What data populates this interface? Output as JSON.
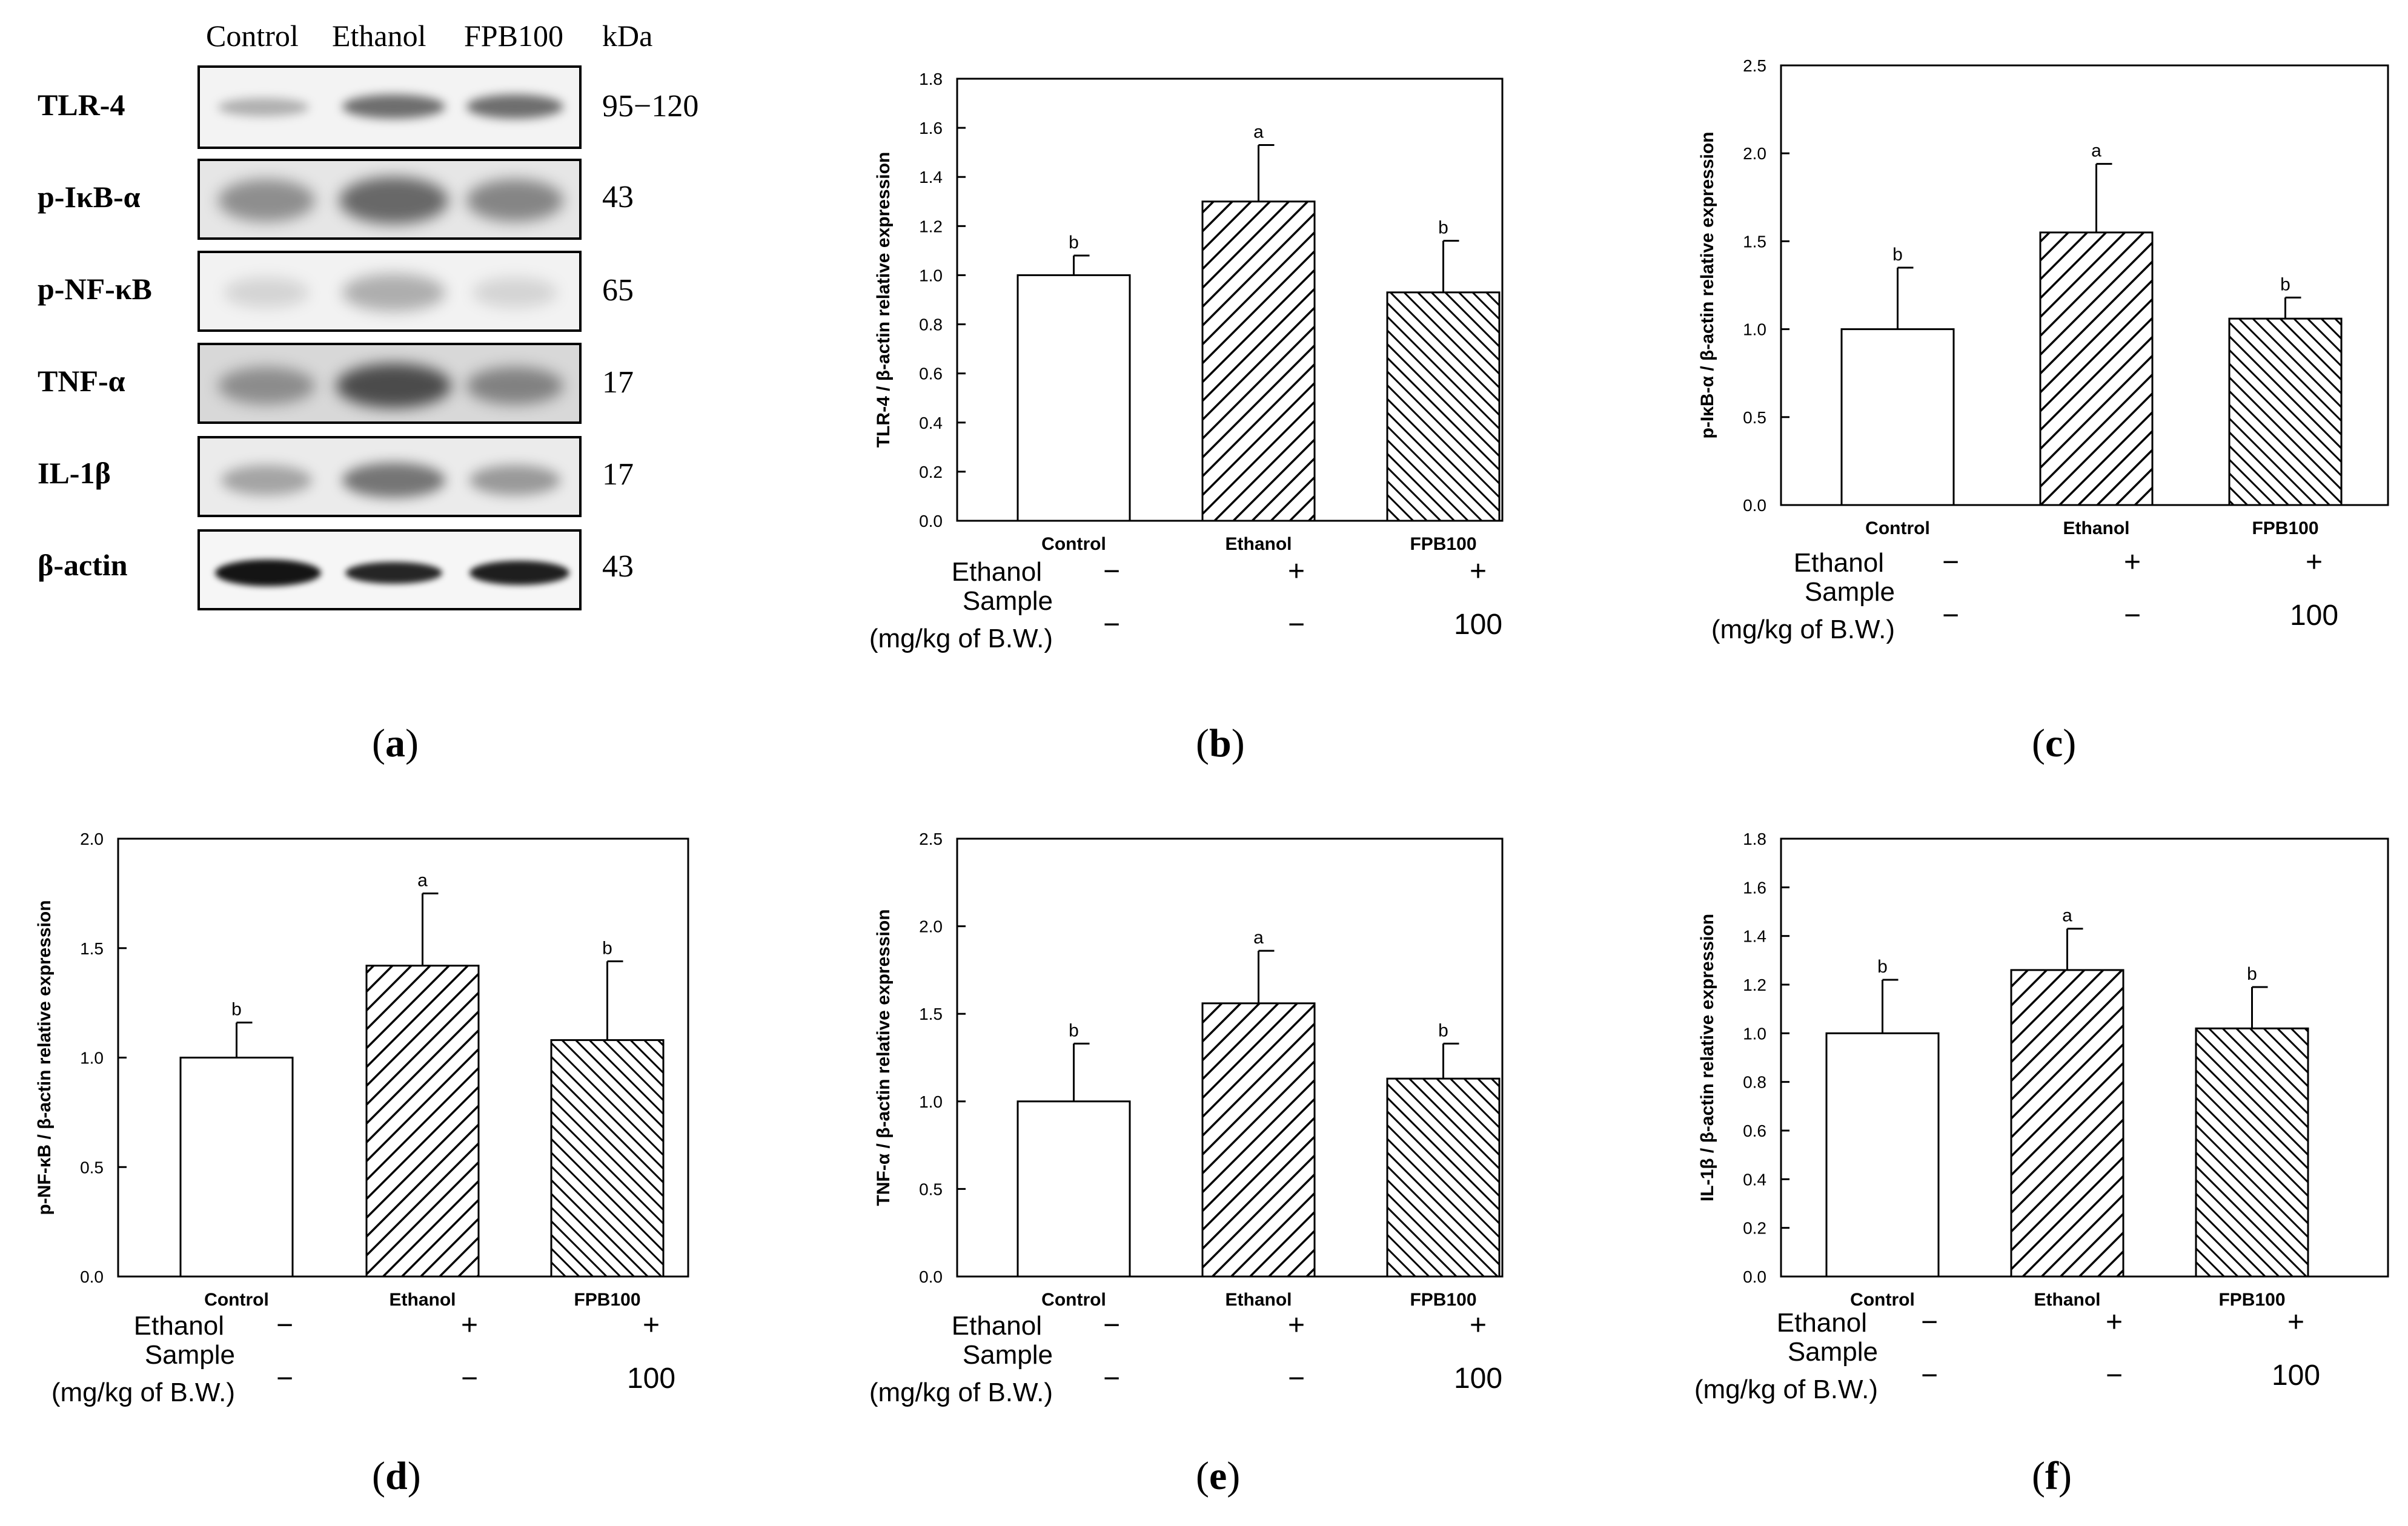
{
  "western_blot": {
    "lane_labels": [
      "Control",
      "Ethanol",
      "FPB100"
    ],
    "kda_header": "kDa",
    "proteins": [
      {
        "name": "TLR-4",
        "kda": "95−120"
      },
      {
        "name": "p-IκB-α",
        "kda": "43"
      },
      {
        "name": "p-NF-κB",
        "kda": "65"
      },
      {
        "name": "TNF-α",
        "kda": "17"
      },
      {
        "name": "IL-1β",
        "kda": "17"
      },
      {
        "name": "β-actin",
        "kda": "43"
      }
    ]
  },
  "condition_table": {
    "ethanol_label": "Ethanol",
    "sample_label": "Sample",
    "dose_label": "(mg/kg  of B.W.)",
    "ethanol_marks": [
      "−",
      "+",
      "+"
    ],
    "sample_marks": [
      "−",
      "−",
      "100"
    ]
  },
  "panels": {
    "a": "a",
    "b": "b",
    "c": "c",
    "d": "d",
    "e": "e",
    "f": "f"
  },
  "chart_data": [
    {
      "id": "b",
      "type": "bar",
      "ylabel": "TLR-4 / β-actin relative expression",
      "categories": [
        "Control",
        "Ethanol",
        "FPB100"
      ],
      "values": [
        1.0,
        1.3,
        0.93
      ],
      "errors": [
        0.08,
        0.23,
        0.21
      ],
      "letters": [
        "b",
        "a",
        "b"
      ],
      "ylim": [
        0,
        1.8
      ],
      "yticks": [
        "0.0",
        "0.2",
        "0.4",
        "0.6",
        "0.8",
        "1.0",
        "1.2",
        "1.4",
        "1.6",
        "1.8"
      ]
    },
    {
      "id": "c",
      "type": "bar",
      "ylabel": "p-IκB-α / β-actin relative expression",
      "categories": [
        "Control",
        "Ethanol",
        "FPB100"
      ],
      "values": [
        1.0,
        1.55,
        1.06
      ],
      "errors": [
        0.35,
        0.39,
        0.12
      ],
      "letters": [
        "b",
        "a",
        "b"
      ],
      "ylim": [
        0,
        2.5
      ],
      "yticks": [
        "0.0",
        "0.5",
        "1.0",
        "1.5",
        "2.0",
        "2.5"
      ]
    },
    {
      "id": "d",
      "type": "bar",
      "ylabel": "p-NF-κB / β-actin relative expression",
      "categories": [
        "Control",
        "Ethanol",
        "FPB100"
      ],
      "values": [
        1.0,
        1.42,
        1.08
      ],
      "errors": [
        0.16,
        0.33,
        0.36
      ],
      "letters": [
        "b",
        "a",
        "b"
      ],
      "ylim": [
        0,
        2.0
      ],
      "yticks": [
        "0.0",
        "0.5",
        "1.0",
        "1.5",
        "2.0"
      ]
    },
    {
      "id": "e",
      "type": "bar",
      "ylabel": "TNF-α / β-actin relative expression",
      "categories": [
        "Control",
        "Ethanol",
        "FPB100"
      ],
      "values": [
        1.0,
        1.56,
        1.13
      ],
      "errors": [
        0.33,
        0.3,
        0.2
      ],
      "letters": [
        "b",
        "a",
        "b"
      ],
      "ylim": [
        0,
        2.5
      ],
      "yticks": [
        "0.0",
        "0.5",
        "1.0",
        "1.5",
        "2.0",
        "2.5"
      ]
    },
    {
      "id": "f",
      "type": "bar",
      "ylabel": "IL-1β / β-actin relative expression",
      "categories": [
        "Control",
        "Ethanol",
        "FPB100"
      ],
      "values": [
        1.0,
        1.26,
        1.02
      ],
      "errors": [
        0.22,
        0.17,
        0.17
      ],
      "letters": [
        "b",
        "a",
        "b"
      ],
      "ylim": [
        0,
        1.8
      ],
      "yticks": [
        "0.0",
        "0.2",
        "0.4",
        "0.6",
        "0.8",
        "1.0",
        "1.2",
        "1.4",
        "1.6",
        "1.8"
      ]
    }
  ]
}
